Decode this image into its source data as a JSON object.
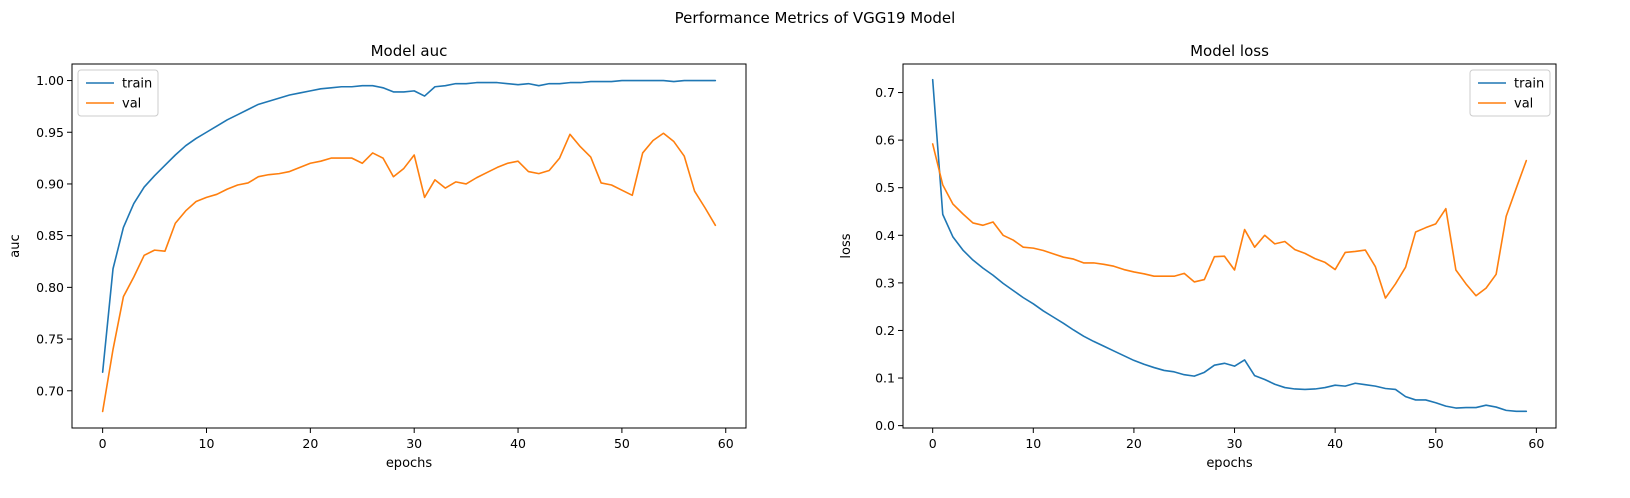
{
  "figure_title": "Performance Metrics of VGG19 Model",
  "colors": {
    "train": "#1f77b4",
    "val": "#ff7f0e",
    "axes": "#000000",
    "legend_border": "#cccccc"
  },
  "chart_data": [
    {
      "type": "line",
      "title": "Model auc",
      "xlabel": "epochs",
      "ylabel": "auc",
      "xlim": [
        -2.95,
        61.95
      ],
      "ylim": [
        0.664,
        1.016
      ],
      "xticks": [
        0,
        10,
        20,
        30,
        40,
        50,
        60
      ],
      "xtick_labels": [
        "0",
        "10",
        "20",
        "30",
        "40",
        "50",
        "60"
      ],
      "yticks": [
        0.7,
        0.75,
        0.8,
        0.85,
        0.9,
        0.95,
        1.0
      ],
      "ytick_labels": [
        "0.70",
        "0.75",
        "0.80",
        "0.85",
        "0.90",
        "0.95",
        "1.00"
      ],
      "legend_position": "upper-left",
      "grid": false,
      "series": [
        {
          "name": "train",
          "color": "#1f77b4",
          "values": [
            0.718,
            0.818,
            0.858,
            0.881,
            0.897,
            0.908,
            0.918,
            0.928,
            0.937,
            0.944,
            0.95,
            0.956,
            0.962,
            0.967,
            0.972,
            0.977,
            0.98,
            0.983,
            0.986,
            0.988,
            0.99,
            0.992,
            0.993,
            0.994,
            0.994,
            0.995,
            0.995,
            0.993,
            0.989,
            0.989,
            0.99,
            0.985,
            0.994,
            0.995,
            0.997,
            0.997,
            0.998,
            0.998,
            0.998,
            0.997,
            0.996,
            0.997,
            0.995,
            0.997,
            0.997,
            0.998,
            0.998,
            0.999,
            0.999,
            0.999,
            1.0,
            1.0,
            1.0,
            1.0,
            1.0,
            0.999,
            1.0,
            1.0,
            1.0,
            1.0
          ]
        },
        {
          "name": "val",
          "color": "#ff7f0e",
          "values": [
            0.68,
            0.74,
            0.791,
            0.81,
            0.831,
            0.836,
            0.835,
            0.862,
            0.874,
            0.883,
            0.887,
            0.89,
            0.895,
            0.899,
            0.901,
            0.907,
            0.909,
            0.91,
            0.912,
            0.916,
            0.92,
            0.922,
            0.925,
            0.925,
            0.925,
            0.92,
            0.93,
            0.925,
            0.907,
            0.915,
            0.928,
            0.887,
            0.904,
            0.896,
            0.902,
            0.9,
            0.906,
            0.911,
            0.916,
            0.92,
            0.922,
            0.912,
            0.91,
            0.913,
            0.925,
            0.948,
            0.936,
            0.926,
            0.901,
            0.899,
            0.894,
            0.889,
            0.93,
            0.942,
            0.949,
            0.941,
            0.927,
            0.893,
            0.877,
            0.86
          ]
        }
      ]
    },
    {
      "type": "line",
      "title": "Model loss",
      "xlabel": "epochs",
      "ylabel": "loss",
      "xlim": [
        -2.95,
        61.95
      ],
      "ylim": [
        -0.005,
        0.76
      ],
      "xticks": [
        0,
        10,
        20,
        30,
        40,
        50,
        60
      ],
      "xtick_labels": [
        "0",
        "10",
        "20",
        "30",
        "40",
        "50",
        "60"
      ],
      "yticks": [
        0.0,
        0.1,
        0.2,
        0.3,
        0.4,
        0.5,
        0.6,
        0.7
      ],
      "ytick_labels": [
        "0.0",
        "0.1",
        "0.2",
        "0.3",
        "0.4",
        "0.5",
        "0.6",
        "0.7"
      ],
      "legend_position": "upper-right",
      "grid": false,
      "series": [
        {
          "name": "train",
          "color": "#1f77b4",
          "values": [
            0.727,
            0.444,
            0.397,
            0.369,
            0.348,
            0.331,
            0.316,
            0.299,
            0.284,
            0.269,
            0.256,
            0.241,
            0.228,
            0.215,
            0.201,
            0.188,
            0.177,
            0.167,
            0.157,
            0.147,
            0.137,
            0.129,
            0.122,
            0.116,
            0.113,
            0.107,
            0.104,
            0.112,
            0.127,
            0.131,
            0.125,
            0.138,
            0.105,
            0.097,
            0.087,
            0.08,
            0.077,
            0.076,
            0.077,
            0.08,
            0.085,
            0.083,
            0.089,
            0.086,
            0.083,
            0.078,
            0.076,
            0.061,
            0.054,
            0.054,
            0.048,
            0.041,
            0.037,
            0.038,
            0.038,
            0.043,
            0.039,
            0.032,
            0.03,
            0.03
          ]
        },
        {
          "name": "val",
          "color": "#ff7f0e",
          "values": [
            0.592,
            0.506,
            0.466,
            0.445,
            0.426,
            0.421,
            0.428,
            0.4,
            0.39,
            0.375,
            0.373,
            0.368,
            0.361,
            0.354,
            0.35,
            0.342,
            0.342,
            0.339,
            0.335,
            0.328,
            0.323,
            0.319,
            0.314,
            0.314,
            0.314,
            0.32,
            0.302,
            0.307,
            0.355,
            0.356,
            0.327,
            0.412,
            0.375,
            0.4,
            0.382,
            0.387,
            0.37,
            0.362,
            0.351,
            0.343,
            0.328,
            0.364,
            0.366,
            0.369,
            0.334,
            0.268,
            0.298,
            0.333,
            0.407,
            0.416,
            0.424,
            0.456,
            0.327,
            0.298,
            0.273,
            0.289,
            0.318,
            0.44,
            0.499,
            0.557
          ]
        }
      ]
    }
  ]
}
